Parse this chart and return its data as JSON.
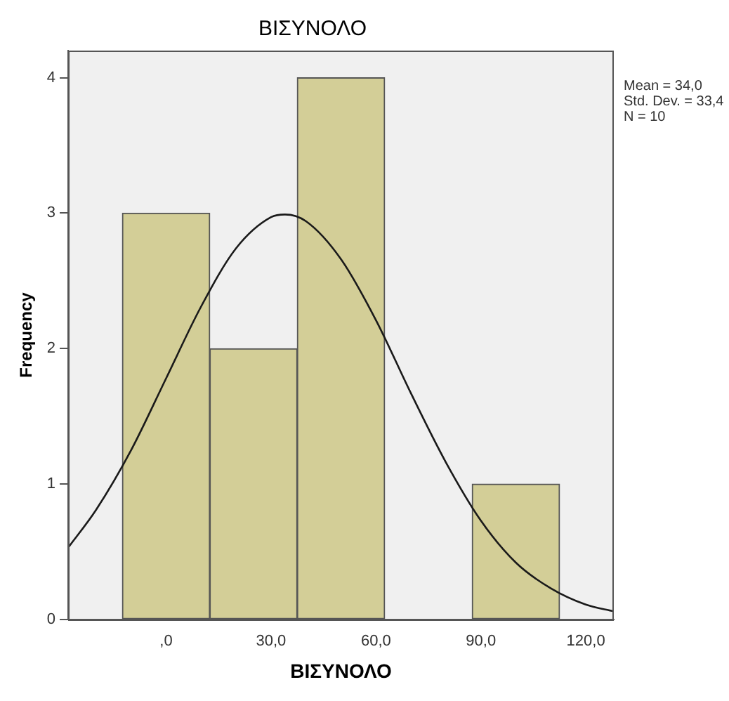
{
  "chart_data": {
    "type": "histogram",
    "title": "ΒΙΣΥΝΟΛΟ",
    "xlabel": "ΒΙΣΥΝΟΛΟ",
    "ylabel": "Frequency",
    "bins": [
      -12.5,
      12.5,
      37.5,
      62.5,
      87.5,
      112.5
    ],
    "values": [
      3,
      2,
      4,
      0,
      1
    ],
    "color": "#d3ce97",
    "series": [
      {
        "type": "line",
        "color": "#1a1a1a",
        "x": [
          -28,
          -20,
          -10,
          0,
          10,
          20,
          30,
          34,
          40,
          50,
          60,
          70,
          80,
          90,
          100,
          110,
          120,
          128
        ],
        "values": [
          0.53,
          0.81,
          1.25,
          1.78,
          2.31,
          2.74,
          2.97,
          2.99,
          2.94,
          2.66,
          2.21,
          1.67,
          1.16,
          0.73,
          0.42,
          0.23,
          0.11,
          0.06
        ]
      }
    ],
    "xlim": [
      -28,
      128
    ],
    "xticks": [
      {
        "value": 0,
        "label": ",0"
      },
      {
        "value": 30,
        "label": "30,0"
      },
      {
        "value": 60,
        "label": "60,0"
      },
      {
        "value": 90,
        "label": "90,0"
      },
      {
        "value": 120,
        "label": "120,0"
      }
    ],
    "ylim": [
      0,
      4.2
    ],
    "yticks": [
      0,
      1,
      2,
      3,
      4
    ],
    "grid": false,
    "legend": false,
    "marker": "none",
    "line_style": "solid",
    "annotations": [
      "Mean = 34,0",
      "Std. Dev. = 33,4",
      "N = 10"
    ]
  }
}
